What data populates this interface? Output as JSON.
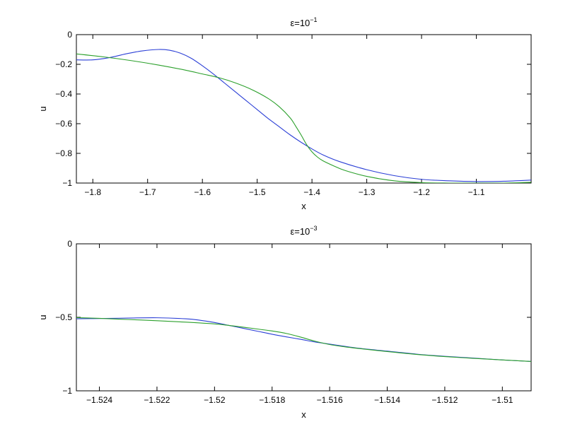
{
  "chart_data": [
    {
      "type": "line",
      "title_base": "ε=10",
      "title_exp": "−1",
      "xlabel": "x",
      "ylabel": "u",
      "xlim": [
        -1.83,
        -1.0
      ],
      "ylim": [
        -1,
        0
      ],
      "xticks": [
        -1.8,
        -1.7,
        -1.6,
        -1.5,
        -1.4,
        -1.3,
        -1.2,
        -1.1
      ],
      "xtick_labels": [
        "−1.8",
        "−1.7",
        "−1.6",
        "−1.5",
        "−1.4",
        "−1.3",
        "−1.2",
        "−1.1"
      ],
      "yticks": [
        0,
        -0.2,
        -0.4,
        -0.6,
        -0.8,
        -1
      ],
      "ytick_labels": [
        "0",
        "−0.2",
        "−0.4",
        "−0.6",
        "−0.8",
        "−1"
      ],
      "grid": false,
      "series": [
        {
          "color": "#2b3fd6",
          "x": [
            -1.83,
            -1.8,
            -1.77,
            -1.74,
            -1.71,
            -1.68,
            -1.66,
            -1.64,
            -1.62,
            -1.6,
            -1.58,
            -1.56,
            -1.54,
            -1.52,
            -1.5,
            -1.48,
            -1.46,
            -1.44,
            -1.42,
            -1.4,
            -1.38,
            -1.35,
            -1.3,
            -1.25,
            -1.2,
            -1.15,
            -1.1,
            -1.05,
            -1.0
          ],
          "y": [
            -0.17,
            -0.17,
            -0.155,
            -0.13,
            -0.11,
            -0.1,
            -0.105,
            -0.125,
            -0.16,
            -0.21,
            -0.265,
            -0.325,
            -0.385,
            -0.445,
            -0.505,
            -0.565,
            -0.62,
            -0.675,
            -0.725,
            -0.77,
            -0.81,
            -0.855,
            -0.91,
            -0.95,
            -0.975,
            -0.985,
            -0.99,
            -0.988,
            -0.98
          ]
        },
        {
          "color": "#2ca02c",
          "x": [
            -1.83,
            -1.78,
            -1.73,
            -1.68,
            -1.63,
            -1.6,
            -1.57,
            -1.54,
            -1.51,
            -1.48,
            -1.46,
            -1.44,
            -1.43,
            -1.42,
            -1.41,
            -1.4,
            -1.39,
            -1.38,
            -1.36,
            -1.34,
            -1.3,
            -1.25,
            -1.2,
            -1.15,
            -1.1,
            -1.05,
            -1.0
          ],
          "y": [
            -0.13,
            -0.15,
            -0.175,
            -0.205,
            -0.24,
            -0.265,
            -0.29,
            -0.325,
            -0.37,
            -0.43,
            -0.485,
            -0.56,
            -0.615,
            -0.675,
            -0.74,
            -0.79,
            -0.825,
            -0.85,
            -0.885,
            -0.915,
            -0.955,
            -0.985,
            -0.997,
            -1.0,
            -1.0,
            -1.0,
            -0.995
          ]
        }
      ]
    },
    {
      "type": "line",
      "title_base": "ε=10",
      "title_exp": "−3",
      "xlabel": "x",
      "ylabel": "u",
      "xlim": [
        -1.5248,
        -1.509
      ],
      "ylim": [
        -1,
        0
      ],
      "xticks": [
        -1.524,
        -1.522,
        -1.52,
        -1.518,
        -1.516,
        -1.514,
        -1.512,
        -1.51
      ],
      "xtick_labels": [
        "−1.524",
        "−1.522",
        "−1.52",
        "−1.518",
        "−1.516",
        "−1.514",
        "−1.512",
        "−1.51"
      ],
      "yticks": [
        0,
        -0.5,
        -1
      ],
      "ytick_labels": [
        "0",
        "−0.5",
        "−1"
      ],
      "grid": false,
      "series": [
        {
          "color": "#2b3fd6",
          "x": [
            -1.5248,
            -1.524,
            -1.523,
            -1.522,
            -1.521,
            -1.5205,
            -1.52,
            -1.5195,
            -1.519,
            -1.5185,
            -1.518,
            -1.5175,
            -1.517,
            -1.5165,
            -1.516,
            -1.515,
            -1.514,
            -1.513,
            -1.512,
            -1.511,
            -1.51,
            -1.509
          ],
          "y": [
            -0.51,
            -0.508,
            -0.505,
            -0.503,
            -0.51,
            -0.52,
            -0.535,
            -0.555,
            -0.575,
            -0.595,
            -0.615,
            -0.633,
            -0.65,
            -0.668,
            -0.682,
            -0.71,
            -0.73,
            -0.75,
            -0.765,
            -0.777,
            -0.79,
            -0.8
          ]
        },
        {
          "color": "#2ca02c",
          "x": [
            -1.5248,
            -1.524,
            -1.523,
            -1.522,
            -1.521,
            -1.52,
            -1.5195,
            -1.519,
            -1.5185,
            -1.518,
            -1.5175,
            -1.517,
            -1.5165,
            -1.516,
            -1.5155,
            -1.515,
            -1.514,
            -1.513,
            -1.512,
            -1.511,
            -1.51,
            -1.509
          ],
          "y": [
            -0.502,
            -0.507,
            -0.515,
            -0.523,
            -0.533,
            -0.545,
            -0.555,
            -0.567,
            -0.58,
            -0.593,
            -0.61,
            -0.635,
            -0.663,
            -0.685,
            -0.7,
            -0.712,
            -0.733,
            -0.752,
            -0.767,
            -0.779,
            -0.79,
            -0.8
          ]
        }
      ]
    }
  ]
}
